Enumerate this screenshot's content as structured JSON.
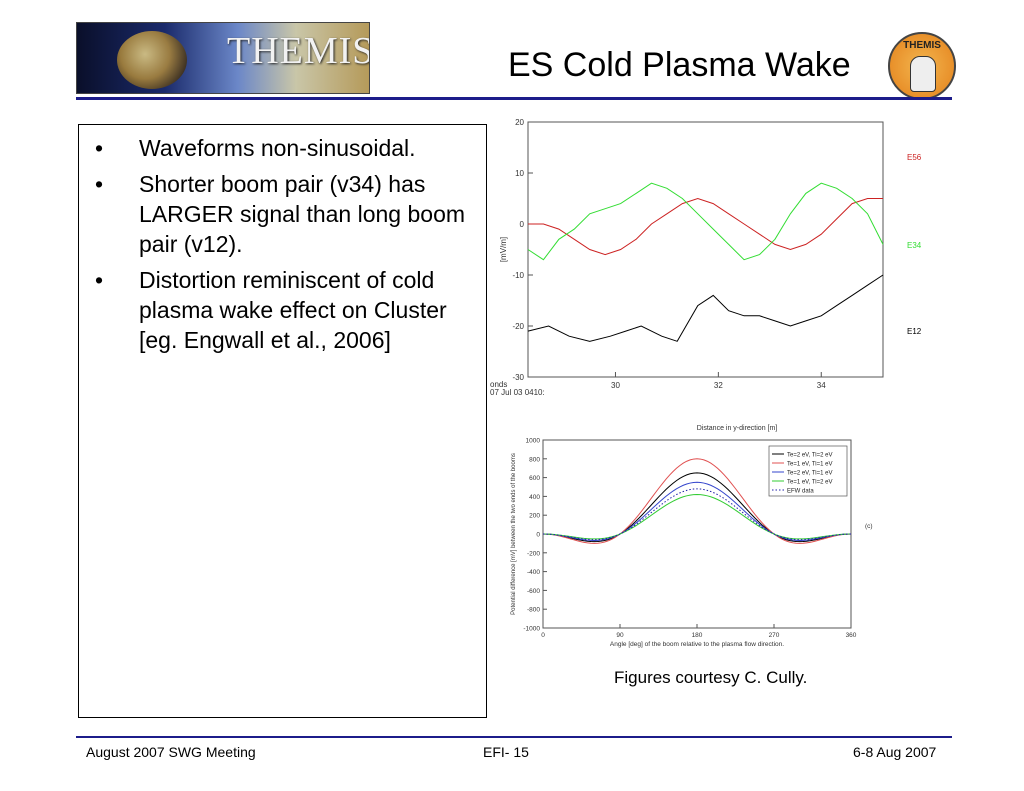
{
  "header": {
    "logo_text": "THEMIS",
    "title": "ES Cold Plasma Wake",
    "badge_text": "THEMIS"
  },
  "bullets": [
    "Waveforms non-sinusoidal.",
    "Shorter boom pair (v34) has LARGER signal than long boom pair (v12).",
    "Distortion reminiscent of cold plasma wake effect on Cluster [eg. Engwall et al., 2006]"
  ],
  "bullet_marker": "•",
  "caption": "Figures courtesy C. Cully.",
  "footer": {
    "left": "August 2007 SWG Meeting",
    "center": "EFI- 15",
    "right": "6-8 Aug 2007"
  },
  "chart_data": [
    {
      "type": "line",
      "xlabel_fragment": "onds",
      "date_label_fragment": "07 Jul 03 0410:",
      "ylabel": "[mV/m]",
      "xticks": [
        30,
        32,
        34
      ],
      "yticks": [
        -30,
        -20,
        -10,
        0,
        10,
        20
      ],
      "xlim": [
        28.3,
        35.2
      ],
      "ylim": [
        -30,
        20
      ],
      "series": [
        {
          "name": "E56",
          "color": "#cc2222",
          "x": [
            28.3,
            28.6,
            28.9,
            29.2,
            29.5,
            29.8,
            30.1,
            30.4,
            30.7,
            31.0,
            31.3,
            31.6,
            31.9,
            32.2,
            32.5,
            32.8,
            33.1,
            33.4,
            33.7,
            34.0,
            34.3,
            34.6,
            34.9,
            35.2
          ],
          "y": [
            0,
            0,
            -1,
            -3,
            -5,
            -6,
            -5,
            -3,
            0,
            2,
            4,
            5,
            4,
            2,
            0,
            -2,
            -4,
            -5,
            -4,
            -2,
            1,
            4,
            5,
            5
          ]
        },
        {
          "name": "E34",
          "color": "#33dd33",
          "x": [
            28.3,
            28.6,
            28.9,
            29.2,
            29.5,
            29.8,
            30.1,
            30.4,
            30.7,
            31.0,
            31.3,
            31.6,
            31.9,
            32.2,
            32.5,
            32.8,
            33.1,
            33.4,
            33.7,
            34.0,
            34.3,
            34.6,
            34.9,
            35.2
          ],
          "y": [
            -5,
            -7,
            -3,
            -1,
            2,
            3,
            4,
            6,
            8,
            7,
            5,
            2,
            -1,
            -4,
            -7,
            -6,
            -3,
            2,
            6,
            8,
            7,
            5,
            2,
            -4
          ]
        },
        {
          "name": "E12",
          "color": "#000000",
          "x": [
            28.3,
            28.7,
            29.1,
            29.5,
            29.9,
            30.2,
            30.5,
            30.9,
            31.2,
            31.6,
            31.9,
            32.2,
            32.5,
            32.8,
            33.1,
            33.4,
            33.7,
            34.0,
            34.3,
            34.6,
            34.9,
            35.2
          ],
          "y": [
            -21,
            -20,
            -22,
            -23,
            -22,
            -21,
            -20,
            -22,
            -23,
            -16,
            -14,
            -17,
            -18,
            -18,
            -19,
            -20,
            -19,
            -18,
            -16,
            -14,
            -12,
            -10
          ]
        }
      ]
    },
    {
      "type": "line",
      "title_fragment": "Distance in y-direction [m]",
      "xlabel": "Angle [deg] of the boom relative to the plasma flow direction.",
      "ylabel": "Potential difference [mV] between the two ends of the booms",
      "panel_label": "(c)",
      "xticks": [
        0,
        90,
        180,
        270,
        360
      ],
      "yticks": [
        -1000,
        -800,
        -600,
        -400,
        -200,
        0,
        200,
        400,
        600,
        800,
        1000
      ],
      "xlim": [
        0,
        360
      ],
      "ylim": [
        -1000,
        1000
      ],
      "legend_position": "top-right",
      "series": [
        {
          "name": "Te=2 eV, Ti=2 eV",
          "color": "#000000",
          "amplitude": 650
        },
        {
          "name": "Te=1 eV, Ti=1 eV",
          "color": "#e05050",
          "amplitude": 800
        },
        {
          "name": "Te=2 eV, Ti=1 eV",
          "color": "#3344cc",
          "amplitude": 550
        },
        {
          "name": "Te=1 eV, Ti=2 eV",
          "color": "#33cc33",
          "amplitude": 420
        },
        {
          "name": "EFW data",
          "color": "#2222aa",
          "amplitude": 480,
          "dotted": true
        }
      ]
    }
  ]
}
